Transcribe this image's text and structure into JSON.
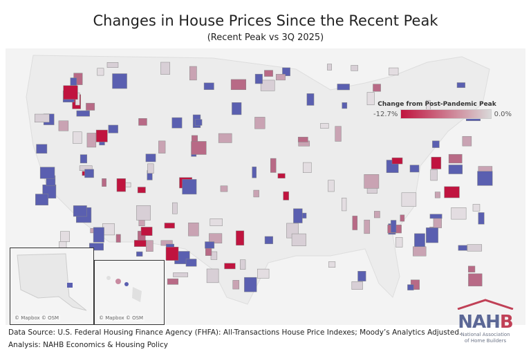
{
  "title": "Changes in House Prices Since the Recent Peak",
  "subtitle": "(Recent Peak vs 3Q 2025)",
  "legend": {
    "title": "Change from Post-Pandemic Peak",
    "min_label": "-12.7%",
    "max_label": "0.0%",
    "min_color": "#c0143f",
    "max_color": "#d9d9d9",
    "no_decline_color": "#5a5fb0"
  },
  "insets": {
    "alaska_credit": "© Mapbox © OSM",
    "hawaii_credit": "© Mapbox © OSM"
  },
  "footer": {
    "source": "Data Source: U.S. Federal Housing Finance Agency (FHFA): All-Transactions House Price Indexes; Moody’s Analytics Adjusted.",
    "analysis": "Analysis: NAHB Economics & Housing Policy"
  },
  "logo": {
    "word": "NAHB",
    "line1": "National Association",
    "line2": "of Home Builders"
  }
}
